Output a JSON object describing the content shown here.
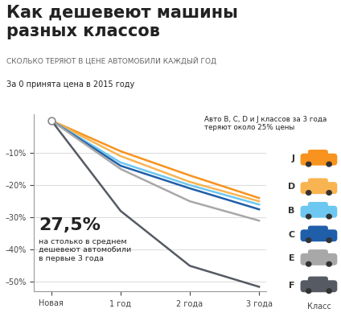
{
  "chart_data": {
    "type": "line",
    "title": "Как дешевеют машины\nразных классов",
    "subtitle": "СКОЛЬКО ТЕРЯЮТ В ЦЕНЕ АВТОМОБИЛИ КАЖДЫЙ ГОД",
    "note": "За 0 принята цена в 2015 году",
    "annotation": "Авто B, C, D и J классов за 3 года\nтеряют около 25% цены",
    "highlight": "27,5%",
    "highlight_text": "на столько в среднем\nдешевеют автомобили\nв первые 3 года",
    "legend_title": "Класс",
    "categories": [
      "Новая",
      "1 год",
      "2 года",
      "3 года"
    ],
    "series": [
      {
        "name": "J",
        "color": "#f7931e",
        "values": [
          0,
          -9.5,
          -17,
          -24
        ]
      },
      {
        "name": "D",
        "color": "#f9b452",
        "values": [
          0,
          -11,
          -19,
          -25
        ]
      },
      {
        "name": "B",
        "color": "#6cc8f0",
        "values": [
          0,
          -13,
          -20,
          -26
        ]
      },
      {
        "name": "C",
        "color": "#1f5ea8",
        "values": [
          0,
          -14,
          -21,
          -27.5
        ]
      },
      {
        "name": "E",
        "color": "#a8a8a8",
        "values": [
          0,
          -15,
          -25,
          -31
        ]
      },
      {
        "name": "F",
        "color": "#555a63",
        "values": [
          0,
          -28,
          -45,
          -51.5
        ]
      }
    ],
    "ylim": [
      -53,
      2
    ],
    "yticks": [
      {
        "value": -10,
        "label": "–10%"
      },
      {
        "value": -20,
        "label": "–20%"
      },
      {
        "value": -30,
        "label": "–30%"
      },
      {
        "value": -40,
        "label": "–40%"
      },
      {
        "value": -50,
        "label": "–50%"
      }
    ],
    "grid": true,
    "marker": "none",
    "line_style": "solid"
  }
}
